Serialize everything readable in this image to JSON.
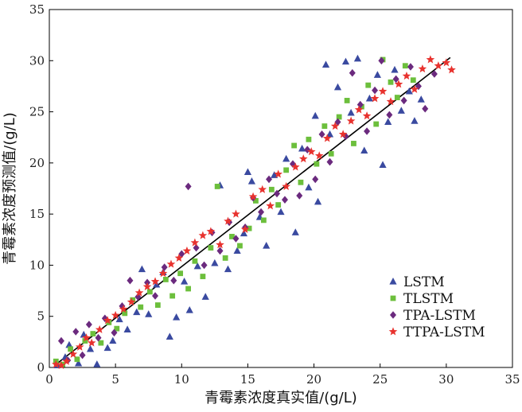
{
  "chart_data": {
    "type": "scatter",
    "xlabel": "青霉素浓度真实值/(g/L)",
    "ylabel": "青霉素浓度预测值/(g/L)",
    "xlim": [
      0,
      35
    ],
    "ylim": [
      0,
      35
    ],
    "x_ticks": [
      "0",
      "5",
      "10",
      "15",
      "20",
      "25",
      "30",
      "35"
    ],
    "y_ticks": [
      "0",
      "5",
      "10",
      "15",
      "20",
      "25",
      "30",
      "35"
    ],
    "grid": false,
    "legend_position": "bottom-right",
    "reference_line": {
      "x": [
        0.5,
        30.3
      ],
      "y": [
        0.3,
        30.3
      ],
      "color": "#000000"
    },
    "series": [
      {
        "name": "LSTM",
        "marker": "triangle",
        "color": "#3a4aa0",
        "points": [
          [
            0.6,
            0.2
          ],
          [
            1.2,
            1.0
          ],
          [
            1.5,
            2.2
          ],
          [
            2.2,
            0.4
          ],
          [
            2.6,
            3.2
          ],
          [
            3.1,
            1.8
          ],
          [
            3.6,
            0.3
          ],
          [
            4.4,
            1.9
          ],
          [
            4.8,
            2.6
          ],
          [
            5.3,
            4.7
          ],
          [
            5.9,
            3.7
          ],
          [
            6.6,
            5.4
          ],
          [
            7.0,
            9.6
          ],
          [
            7.5,
            5.2
          ],
          [
            8.1,
            8.1
          ],
          [
            8.6,
            9.3
          ],
          [
            9.1,
            3.0
          ],
          [
            9.6,
            4.9
          ],
          [
            10.2,
            8.4
          ],
          [
            10.6,
            5.6
          ],
          [
            11.2,
            9.9
          ],
          [
            11.8,
            6.9
          ],
          [
            12.5,
            10.2
          ],
          [
            12.9,
            17.8
          ],
          [
            13.5,
            9.6
          ],
          [
            14.2,
            11.4
          ],
          [
            14.7,
            13.1
          ],
          [
            15.0,
            19.1
          ],
          [
            15.3,
            18.2
          ],
          [
            15.9,
            14.7
          ],
          [
            16.4,
            11.9
          ],
          [
            17.0,
            18.8
          ],
          [
            17.5,
            15.2
          ],
          [
            17.9,
            20.4
          ],
          [
            18.6,
            13.2
          ],
          [
            19.1,
            21.4
          ],
          [
            19.6,
            17.6
          ],
          [
            20.1,
            24.6
          ],
          [
            20.3,
            16.2
          ],
          [
            20.9,
            29.6
          ],
          [
            21.2,
            22.8
          ],
          [
            21.8,
            27.4
          ],
          [
            22.4,
            29.9
          ],
          [
            22.8,
            24.9
          ],
          [
            23.3,
            30.2
          ],
          [
            23.8,
            21.2
          ],
          [
            24.2,
            26.3
          ],
          [
            24.8,
            28.6
          ],
          [
            25.2,
            19.8
          ],
          [
            25.6,
            24.0
          ],
          [
            26.1,
            29.1
          ],
          [
            26.6,
            25.1
          ],
          [
            27.2,
            27.0
          ],
          [
            27.6,
            24.1
          ],
          [
            28.1,
            26.2
          ]
        ]
      },
      {
        "name": "TLSTM",
        "marker": "square",
        "color": "#6cbf3c",
        "points": [
          [
            0.5,
            0.6
          ],
          [
            1.0,
            0.3
          ],
          [
            1.6,
            1.8
          ],
          [
            2.1,
            0.8
          ],
          [
            2.7,
            2.6
          ],
          [
            3.3,
            3.3
          ],
          [
            3.9,
            2.4
          ],
          [
            4.5,
            4.4
          ],
          [
            5.1,
            3.8
          ],
          [
            5.7,
            5.3
          ],
          [
            6.3,
            6.6
          ],
          [
            6.9,
            5.9
          ],
          [
            7.6,
            7.4
          ],
          [
            8.2,
            6.1
          ],
          [
            8.8,
            8.6
          ],
          [
            9.3,
            7.0
          ],
          [
            9.9,
            9.2
          ],
          [
            10.5,
            7.7
          ],
          [
            11.0,
            10.4
          ],
          [
            11.6,
            8.9
          ],
          [
            12.2,
            11.7
          ],
          [
            12.7,
            17.7
          ],
          [
            13.3,
            10.7
          ],
          [
            13.8,
            12.8
          ],
          [
            14.4,
            11.9
          ],
          [
            15.1,
            13.6
          ],
          [
            15.6,
            16.3
          ],
          [
            16.2,
            14.4
          ],
          [
            16.8,
            17.4
          ],
          [
            17.3,
            15.9
          ],
          [
            17.9,
            19.3
          ],
          [
            18.5,
            21.7
          ],
          [
            19.0,
            18.1
          ],
          [
            19.6,
            22.3
          ],
          [
            20.2,
            19.9
          ],
          [
            20.8,
            23.6
          ],
          [
            21.3,
            20.9
          ],
          [
            21.9,
            24.5
          ],
          [
            22.5,
            26.1
          ],
          [
            23.0,
            21.9
          ],
          [
            23.6,
            25.5
          ],
          [
            24.1,
            27.6
          ],
          [
            24.7,
            23.8
          ],
          [
            25.2,
            30.1
          ],
          [
            25.8,
            27.9
          ],
          [
            26.3,
            26.4
          ],
          [
            26.9,
            29.5
          ],
          [
            27.5,
            28.1
          ]
        ]
      },
      {
        "name": "TPA-LSTM",
        "marker": "diamond",
        "color": "#6b2a7e",
        "points": [
          [
            0.9,
            2.6
          ],
          [
            1.4,
            0.7
          ],
          [
            2.0,
            3.5
          ],
          [
            2.5,
            1.2
          ],
          [
            3.0,
            4.2
          ],
          [
            3.7,
            2.9
          ],
          [
            4.2,
            4.8
          ],
          [
            4.9,
            3.4
          ],
          [
            5.5,
            6.0
          ],
          [
            6.1,
            8.5
          ],
          [
            6.7,
            6.9
          ],
          [
            7.4,
            8.3
          ],
          [
            8.0,
            7.0
          ],
          [
            8.7,
            9.8
          ],
          [
            9.4,
            8.5
          ],
          [
            10.0,
            11.1
          ],
          [
            10.5,
            17.7
          ],
          [
            11.1,
            11.7
          ],
          [
            11.7,
            10.0
          ],
          [
            12.3,
            13.2
          ],
          [
            12.9,
            11.4
          ],
          [
            13.6,
            14.2
          ],
          [
            14.1,
            12.6
          ],
          [
            14.8,
            13.7
          ],
          [
            15.4,
            16.6
          ],
          [
            16.0,
            15.2
          ],
          [
            16.6,
            18.4
          ],
          [
            17.2,
            17.0
          ],
          [
            17.8,
            16.4
          ],
          [
            18.4,
            19.9
          ],
          [
            18.9,
            16.8
          ],
          [
            19.5,
            21.3
          ],
          [
            20.1,
            18.4
          ],
          [
            20.6,
            22.8
          ],
          [
            21.2,
            20.1
          ],
          [
            21.8,
            24.0
          ],
          [
            22.4,
            22.6
          ],
          [
            22.9,
            28.8
          ],
          [
            23.5,
            25.7
          ],
          [
            24.0,
            23.1
          ],
          [
            24.6,
            27.1
          ],
          [
            25.1,
            30.0
          ],
          [
            25.7,
            24.7
          ],
          [
            26.2,
            28.2
          ],
          [
            26.8,
            26.1
          ],
          [
            27.3,
            29.4
          ],
          [
            27.9,
            27.5
          ],
          [
            28.4,
            25.3
          ],
          [
            29.1,
            28.7
          ]
        ]
      },
      {
        "name": "TTPA-LSTM",
        "marker": "star",
        "color": "#e8322e",
        "points": [
          [
            0.5,
            0.3
          ],
          [
            0.9,
            0.2
          ],
          [
            1.3,
            0.6
          ],
          [
            1.8,
            1.3
          ],
          [
            2.3,
            2.0
          ],
          [
            2.8,
            2.9
          ],
          [
            3.2,
            2.4
          ],
          [
            3.8,
            3.7
          ],
          [
            4.4,
            4.6
          ],
          [
            5.0,
            5.1
          ],
          [
            5.6,
            5.7
          ],
          [
            6.2,
            6.4
          ],
          [
            6.8,
            7.3
          ],
          [
            7.4,
            7.9
          ],
          [
            8.0,
            8.4
          ],
          [
            8.6,
            9.2
          ],
          [
            9.2,
            10.1
          ],
          [
            9.8,
            10.7
          ],
          [
            10.4,
            11.4
          ],
          [
            11.0,
            12.2
          ],
          [
            11.6,
            12.9
          ],
          [
            12.2,
            13.3
          ],
          [
            12.9,
            12.0
          ],
          [
            13.5,
            14.3
          ],
          [
            14.1,
            15.0
          ],
          [
            14.8,
            13.5
          ],
          [
            15.4,
            16.7
          ],
          [
            16.1,
            17.4
          ],
          [
            16.7,
            15.8
          ],
          [
            17.3,
            18.9
          ],
          [
            17.9,
            17.7
          ],
          [
            18.6,
            19.6
          ],
          [
            19.2,
            20.4
          ],
          [
            19.8,
            21.1
          ],
          [
            20.4,
            20.7
          ],
          [
            21.0,
            22.4
          ],
          [
            21.6,
            23.6
          ],
          [
            22.2,
            22.8
          ],
          [
            22.8,
            24.1
          ],
          [
            23.4,
            25.2
          ],
          [
            24.0,
            24.6
          ],
          [
            24.6,
            26.3
          ],
          [
            25.2,
            27.0
          ],
          [
            25.8,
            26.0
          ],
          [
            26.4,
            27.7
          ],
          [
            27.0,
            28.5
          ],
          [
            27.6,
            27.2
          ],
          [
            28.2,
            29.2
          ],
          [
            28.8,
            30.1
          ],
          [
            29.4,
            29.5
          ],
          [
            30.0,
            29.8
          ],
          [
            30.4,
            29.1
          ]
        ]
      }
    ]
  }
}
